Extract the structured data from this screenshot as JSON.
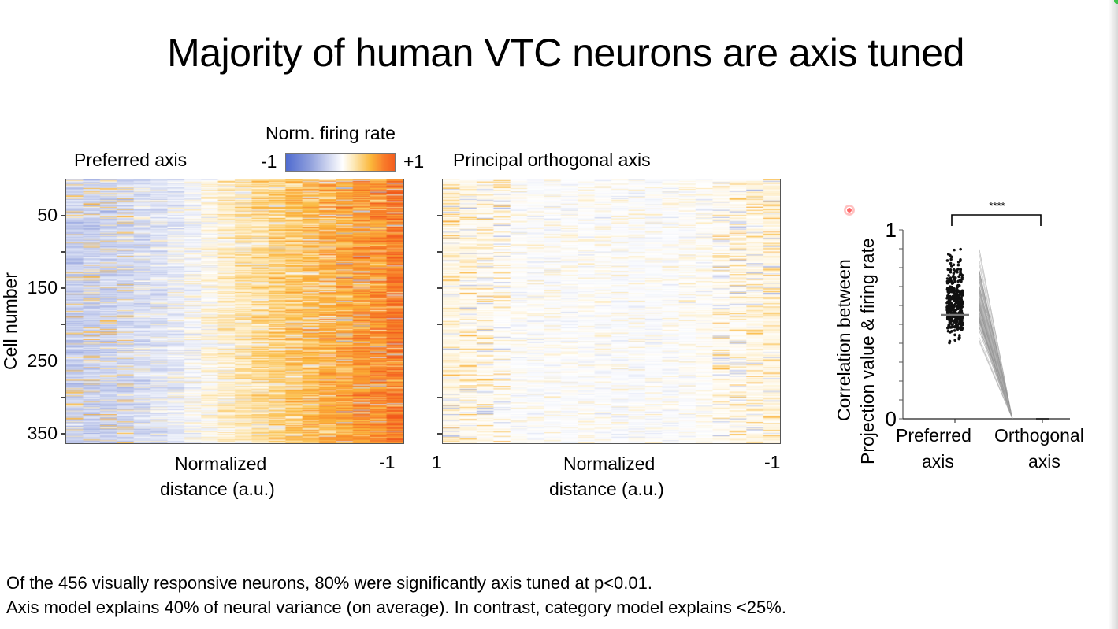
{
  "slide": {
    "title": "Majority of human VTC neurons are axis tuned",
    "footnotes": [
      "Of the 456 visually responsive neurons, 80% were significantly axis tuned at p<0.01.",
      "Axis model explains 40% of neural variance (on average). In contrast, category model explains <25%."
    ]
  },
  "colorbar": {
    "title": "Norm. firing rate",
    "min_label": "-1",
    "max_label": "+1",
    "colors": [
      "#4f6bd0",
      "#ffffff",
      "#fbb73a",
      "#f45e1f"
    ]
  },
  "chart_data": [
    {
      "type": "heatmap",
      "title": "Preferred axis",
      "ylabel": "Cell number",
      "xlabel": "Normalized distance (a.u.)",
      "x_tick_labels": {
        "left": "",
        "right": "-1"
      },
      "y_ticks": [
        50,
        150,
        250,
        350
      ],
      "y_minor_ticks": [
        100,
        200,
        300
      ],
      "n_rows": 365,
      "n_cols": 20,
      "value_range": [
        -1,
        1
      ],
      "column_mean_values": [
        -0.35,
        -0.35,
        -0.33,
        -0.3,
        -0.27,
        -0.22,
        -0.15,
        -0.05,
        0.08,
        0.18,
        0.26,
        0.34,
        0.42,
        0.5,
        0.56,
        0.62,
        0.68,
        0.74,
        0.8,
        0.9
      ],
      "notes": "Rows sorted; firing rate increases monotonically from left (blue, -1) to right (orange, +1)"
    },
    {
      "type": "heatmap",
      "title": "Principal orthogonal axis",
      "xlabel": "Normalized distance (a.u.)",
      "x_tick_labels": {
        "left": "1",
        "right": "-1"
      },
      "n_rows": 365,
      "n_cols": 20,
      "value_range": [
        -1,
        1
      ],
      "column_mean_values": [
        0.12,
        0.1,
        0.08,
        0.05,
        0.03,
        0.02,
        0.01,
        0.02,
        0.03,
        0.02,
        0.0,
        0.0,
        0.01,
        0.02,
        0.03,
        0.05,
        0.07,
        0.08,
        0.1,
        0.12
      ],
      "notes": "Near-zero, unstructured responses along orthogonal axis"
    },
    {
      "type": "scatter",
      "title": "",
      "ylabel": "Correlation between Projection value & firing rate",
      "ylabel_lines": [
        "Correlation between",
        "Projection value  & firing rate"
      ],
      "categories": [
        "Preferred axis",
        "Orthogonal axis"
      ],
      "category_lines": [
        [
          "Preferred",
          "axis"
        ],
        [
          "Orthogonal",
          "axis"
        ]
      ],
      "ylim": [
        0,
        1
      ],
      "y_tick_labels": [
        "0",
        "1"
      ],
      "y_minor_step": 0.1,
      "series": [
        {
          "name": "Preferred axis",
          "median": 0.55,
          "min": 0.4,
          "max": 0.9,
          "n_points": 365
        },
        {
          "name": "Orthogonal axis",
          "median": 0.0,
          "min": 0.0,
          "max": 0.01,
          "n_points": 365
        }
      ],
      "significance": "****"
    }
  ]
}
